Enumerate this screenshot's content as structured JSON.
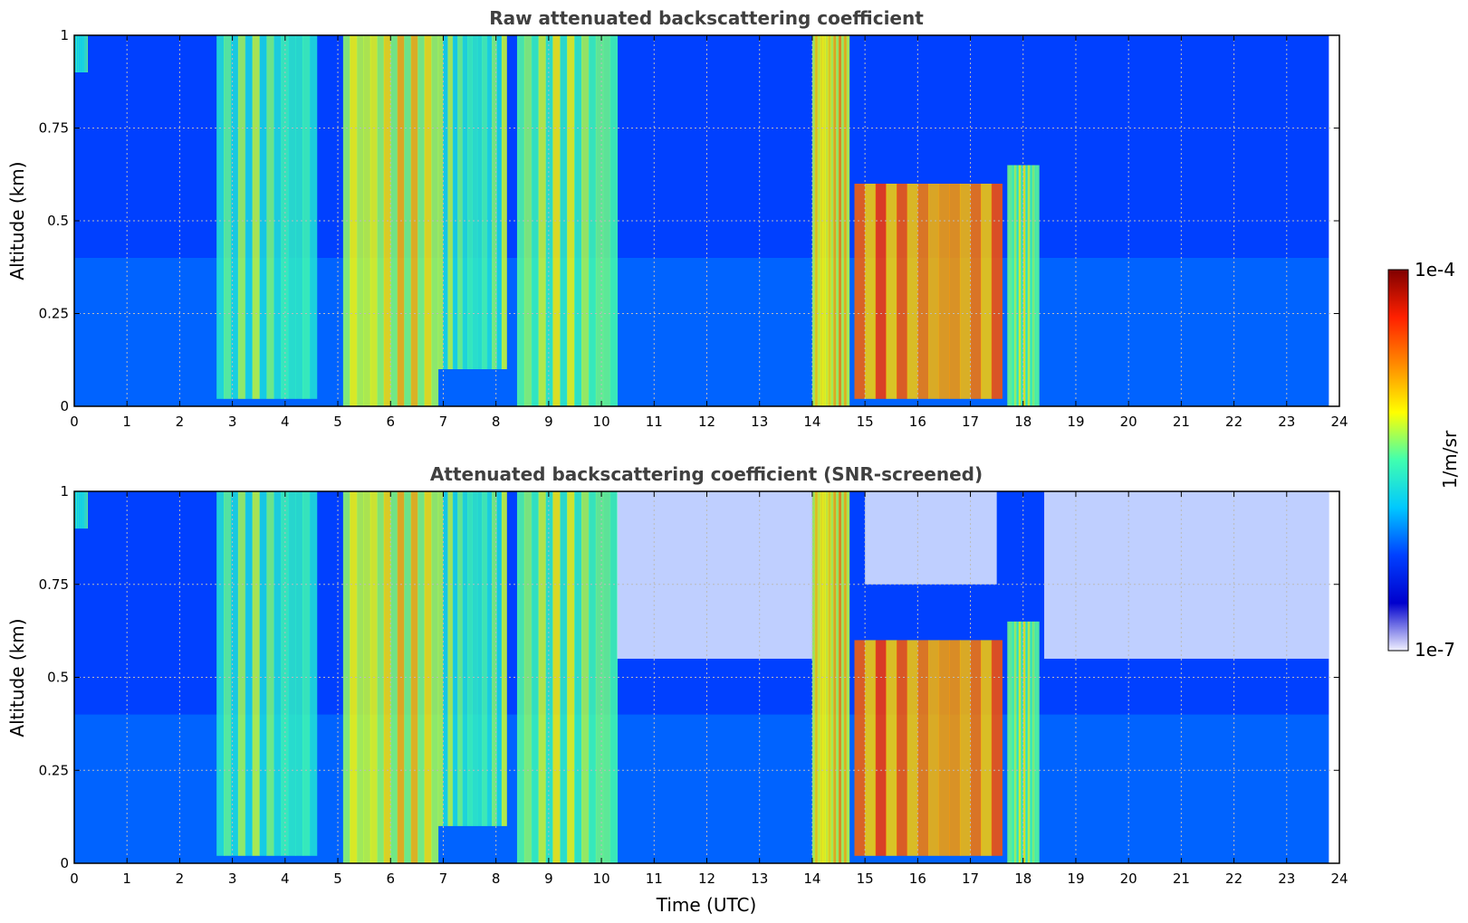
{
  "chart_data": [
    {
      "type": "heatmap",
      "title": "Raw attenuated backscattering coefficient",
      "xlabel": "",
      "ylabel": "Altitude (km)",
      "xlim": [
        0,
        24
      ],
      "ylim": [
        0,
        1
      ],
      "xticks": [
        "0",
        "1",
        "2",
        "3",
        "4",
        "5",
        "6",
        "7",
        "8",
        "9",
        "10",
        "11",
        "12",
        "13",
        "14",
        "15",
        "16",
        "17",
        "18",
        "19",
        "20",
        "21",
        "22",
        "23",
        "24"
      ],
      "yticks": [
        "0",
        "0.25",
        "0.5",
        "0.75",
        "1"
      ],
      "grid": true,
      "screened": false,
      "background_level": 0.25,
      "clouds": [
        {
          "t0": 0.0,
          "t1": 0.25,
          "top": 1.0,
          "base": 0.9,
          "level": 0.55
        },
        {
          "t0": 2.7,
          "t1": 4.6,
          "top": 1.0,
          "base": 0.02,
          "level": 0.6
        },
        {
          "t0": 5.1,
          "t1": 6.9,
          "top": 1.0,
          "base": 0.0,
          "level": 0.72
        },
        {
          "t0": 6.9,
          "t1": 8.2,
          "top": 1.0,
          "base": 0.1,
          "level": 0.6
        },
        {
          "t0": 8.4,
          "t1": 10.3,
          "top": 1.0,
          "base": 0.0,
          "level": 0.65
        },
        {
          "t0": 14.0,
          "t1": 14.7,
          "top": 1.0,
          "base": 0.0,
          "level": 0.75
        },
        {
          "t0": 14.8,
          "t1": 17.6,
          "top": 0.6,
          "base": 0.02,
          "level": 0.85
        },
        {
          "t0": 17.7,
          "t1": 18.3,
          "top": 0.65,
          "base": 0.0,
          "level": 0.65
        }
      ]
    },
    {
      "type": "heatmap",
      "title": "Attenuated backscattering coefficient (SNR-screened)",
      "xlabel": "Time (UTC)",
      "ylabel": "Altitude (km)",
      "xlim": [
        0,
        24
      ],
      "ylim": [
        0,
        1
      ],
      "xticks": [
        "0",
        "1",
        "2",
        "3",
        "4",
        "5",
        "6",
        "7",
        "8",
        "9",
        "10",
        "11",
        "12",
        "13",
        "14",
        "15",
        "16",
        "17",
        "18",
        "19",
        "20",
        "21",
        "22",
        "23",
        "24"
      ],
      "yticks": [
        "0",
        "0.25",
        "0.5",
        "0.75",
        "1"
      ],
      "grid": true,
      "screened": true,
      "background_level": 0.25,
      "clouds": [
        {
          "t0": 0.0,
          "t1": 0.25,
          "top": 1.0,
          "base": 0.9,
          "level": 0.55
        },
        {
          "t0": 2.7,
          "t1": 4.6,
          "top": 1.0,
          "base": 0.02,
          "level": 0.6
        },
        {
          "t0": 5.1,
          "t1": 6.9,
          "top": 1.0,
          "base": 0.0,
          "level": 0.72
        },
        {
          "t0": 6.9,
          "t1": 8.2,
          "top": 1.0,
          "base": 0.1,
          "level": 0.6
        },
        {
          "t0": 8.4,
          "t1": 10.3,
          "top": 1.0,
          "base": 0.0,
          "level": 0.65
        },
        {
          "t0": 14.0,
          "t1": 14.7,
          "top": 1.0,
          "base": 0.0,
          "level": 0.75
        },
        {
          "t0": 14.8,
          "t1": 17.6,
          "top": 0.6,
          "base": 0.02,
          "level": 0.85
        },
        {
          "t0": 17.7,
          "t1": 18.3,
          "top": 0.65,
          "base": 0.0,
          "level": 0.65
        }
      ]
    }
  ],
  "colorbar": {
    "label": "1/m/sr",
    "max_label": "1e-4",
    "min_label": "1e-7",
    "colormap": "jet",
    "colors": [
      "#f0f0ff",
      "#0000cd",
      "#0040ff",
      "#00c8ff",
      "#40ffb0",
      "#ffff00",
      "#ff8c00",
      "#ff2000",
      "#800000"
    ]
  }
}
